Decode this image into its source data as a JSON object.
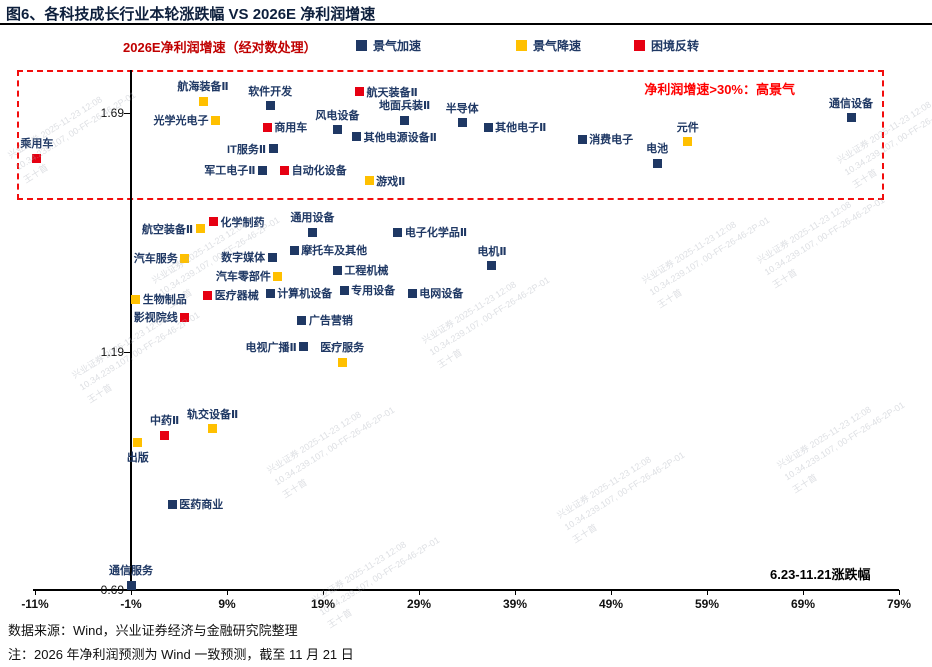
{
  "page": {
    "title": "图6、各科技成长行业本轮涨跌幅 VS 2026E 净利润增速",
    "source_note": "数据来源：Wind，兴业证券经济与金融研究院整理",
    "footnote": "注：2026 年净利润预测为 Wind 一致预测，截至 11 月 21 日",
    "watermark": {
      "line1": "兴业证券 2025-11-23 12:08",
      "line2": "10.34.239.107, 00-FF-26-46-2P-01",
      "line3": "王十首"
    }
  },
  "chart_data": {
    "type": "scatter",
    "title": "图6、各科技成长行业本轮涨跌幅 VS 2026E 净利润增速",
    "ylabel": "2026E净利润增速（经对数处理）",
    "xlabel": "6.23-11.21涨跌幅",
    "annotation": "净利润增速>30%：高景气",
    "xlim": [
      -11,
      79
    ],
    "ylim": [
      0.69,
      1.69
    ],
    "x_ticks": [
      "-11%",
      "-1%",
      "9%",
      "19%",
      "29%",
      "39%",
      "49%",
      "59%",
      "69%",
      "79%"
    ],
    "y_ticks": [
      1.69,
      1.19,
      0.69
    ],
    "grid": false,
    "legend_position": "top",
    "legend": [
      {
        "name": "景气加速",
        "color": "#1f3864"
      },
      {
        "name": "景气降速",
        "color": "#ffc000"
      },
      {
        "name": "困境反转",
        "color": "#e60012"
      }
    ],
    "points": [
      {
        "name": "乘用车",
        "x": -10.8,
        "y": 1.595,
        "group": "困境反转",
        "label_pos": "above"
      },
      {
        "name": "航海装备Ⅱ",
        "x": 6.5,
        "y": 1.715,
        "group": "景气降速",
        "label_pos": "above"
      },
      {
        "name": "软件开发",
        "x": 13.5,
        "y": 1.705,
        "group": "景气加速",
        "label_pos": "above"
      },
      {
        "name": "航天装备Ⅱ",
        "x": 22.8,
        "y": 1.735,
        "group": "困境反转",
        "label_pos": "right"
      },
      {
        "name": "光学光电子",
        "x": 7.8,
        "y": 1.675,
        "group": "景气降速",
        "label_pos": "left"
      },
      {
        "name": "商用车",
        "x": 13.2,
        "y": 1.66,
        "group": "困境反转",
        "label_pos": "right"
      },
      {
        "name": "风电设备",
        "x": 20.5,
        "y": 1.655,
        "group": "景气加速",
        "label_pos": "above"
      },
      {
        "name": "地面兵装Ⅱ",
        "x": 27.5,
        "y": 1.675,
        "group": "景气加速",
        "label_pos": "above"
      },
      {
        "name": "半导体",
        "x": 33.5,
        "y": 1.67,
        "group": "景气加速",
        "label_pos": "above"
      },
      {
        "name": "其他电子Ⅱ",
        "x": 36.2,
        "y": 1.66,
        "group": "景气加速",
        "label_pos": "right"
      },
      {
        "name": "通信设备",
        "x": 74.0,
        "y": 1.68,
        "group": "景气加速",
        "label_pos": "above"
      },
      {
        "name": "IT服务Ⅱ",
        "x": 13.8,
        "y": 1.615,
        "group": "景气加速",
        "label_pos": "left"
      },
      {
        "name": "其他电源设备Ⅱ",
        "x": 22.5,
        "y": 1.64,
        "group": "景气加速",
        "label_pos": "right"
      },
      {
        "name": "消费电子",
        "x": 46.0,
        "y": 1.635,
        "group": "景气加速",
        "label_pos": "right"
      },
      {
        "name": "元件",
        "x": 57.0,
        "y": 1.63,
        "group": "景气降速",
        "label_pos": "above"
      },
      {
        "name": "电池",
        "x": 53.8,
        "y": 1.585,
        "group": "景气加速",
        "label_pos": "above"
      },
      {
        "name": "军工电子Ⅱ",
        "x": 12.7,
        "y": 1.57,
        "group": "景气加速",
        "label_pos": "left"
      },
      {
        "name": "自动化设备",
        "x": 15.0,
        "y": 1.57,
        "group": "困境反转",
        "label_pos": "right"
      },
      {
        "name": "游戏Ⅱ",
        "x": 23.8,
        "y": 1.548,
        "group": "景气降速",
        "label_pos": "right"
      },
      {
        "name": "航空装备Ⅱ",
        "x": 6.2,
        "y": 1.447,
        "group": "景气降速",
        "label_pos": "left"
      },
      {
        "name": "化学制药",
        "x": 7.6,
        "y": 1.462,
        "group": "困境反转",
        "label_pos": "right"
      },
      {
        "name": "通用设备",
        "x": 17.9,
        "y": 1.44,
        "group": "景气加速",
        "label_pos": "above"
      },
      {
        "name": "电子化学品Ⅱ",
        "x": 26.8,
        "y": 1.44,
        "group": "景气加速",
        "label_pos": "right"
      },
      {
        "name": "汽车服务",
        "x": 4.6,
        "y": 1.385,
        "group": "景气降速",
        "label_pos": "left"
      },
      {
        "name": "数字媒体",
        "x": 13.7,
        "y": 1.388,
        "group": "景气加速",
        "label_pos": "left"
      },
      {
        "name": "摩托车及其他",
        "x": 16.0,
        "y": 1.402,
        "group": "景气加速",
        "label_pos": "right"
      },
      {
        "name": "电机Ⅱ",
        "x": 36.6,
        "y": 1.37,
        "group": "景气加速",
        "label_pos": "above"
      },
      {
        "name": "汽车零部件",
        "x": 14.3,
        "y": 1.348,
        "group": "景气降速",
        "label_pos": "left"
      },
      {
        "name": "工程机械",
        "x": 20.5,
        "y": 1.36,
        "group": "景气加速",
        "label_pos": "right"
      },
      {
        "name": "生物制品",
        "x": -0.5,
        "y": 1.3,
        "group": "景气降速",
        "label_pos": "right"
      },
      {
        "name": "医疗器械",
        "x": 7.0,
        "y": 1.308,
        "group": "困境反转",
        "label_pos": "right"
      },
      {
        "name": "计算机设备",
        "x": 13.5,
        "y": 1.312,
        "group": "景气加速",
        "label_pos": "right"
      },
      {
        "name": "专用设备",
        "x": 21.2,
        "y": 1.318,
        "group": "景气加速",
        "label_pos": "right"
      },
      {
        "name": "电网设备",
        "x": 28.3,
        "y": 1.312,
        "group": "景气加速",
        "label_pos": "right"
      },
      {
        "name": "影视院线",
        "x": 4.6,
        "y": 1.262,
        "group": "困境反转",
        "label_pos": "left"
      },
      {
        "name": "广告营销",
        "x": 16.8,
        "y": 1.255,
        "group": "景气加速",
        "label_pos": "right"
      },
      {
        "name": "电视广播Ⅱ",
        "x": 17.0,
        "y": 1.2,
        "group": "景气加速",
        "label_pos": "left"
      },
      {
        "name": "医疗服务",
        "x": 21.0,
        "y": 1.167,
        "group": "景气降速",
        "label_pos": "above"
      },
      {
        "name": "中药Ⅱ",
        "x": 2.5,
        "y": 1.014,
        "group": "困境反转",
        "label_pos": "above"
      },
      {
        "name": "轨交设备Ⅱ",
        "x": 7.5,
        "y": 1.028,
        "group": "景气降速",
        "label_pos": "above"
      },
      {
        "name": "出版",
        "x": -0.3,
        "y": 1.0,
        "group": "景气降速",
        "label_pos": "below"
      },
      {
        "name": "医药商业",
        "x": 3.3,
        "y": 0.87,
        "group": "景气加速",
        "label_pos": "right"
      },
      {
        "name": "通信服务",
        "x": -1.0,
        "y": 0.7,
        "group": "景气加速",
        "label_pos": "above"
      }
    ]
  }
}
